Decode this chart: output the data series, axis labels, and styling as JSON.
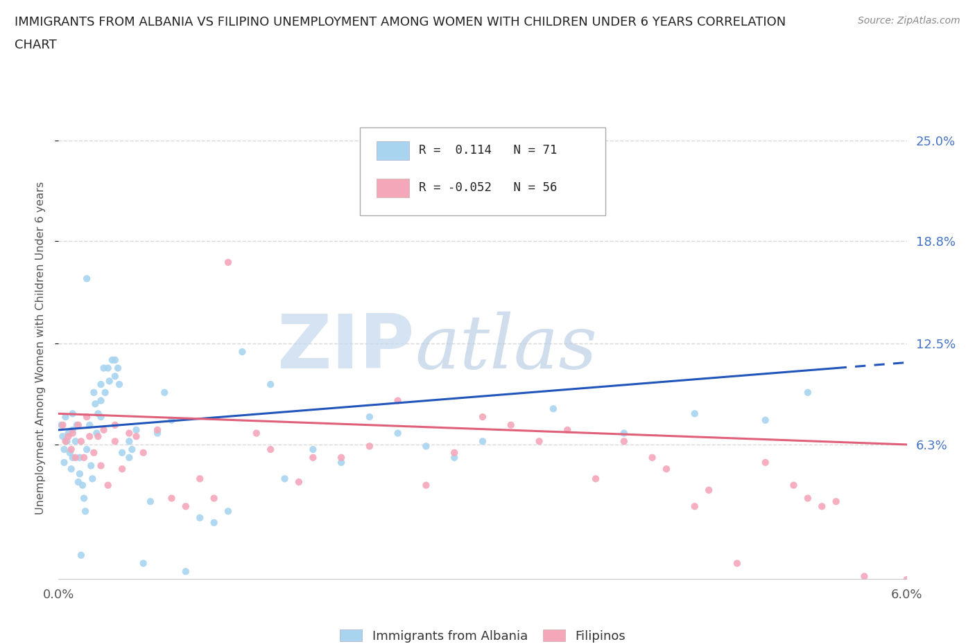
{
  "title_line1": "IMMIGRANTS FROM ALBANIA VS FILIPINO UNEMPLOYMENT AMONG WOMEN WITH CHILDREN UNDER 6 YEARS CORRELATION",
  "title_line2": "CHART",
  "source": "Source: ZipAtlas.com",
  "ylabel": "Unemployment Among Women with Children Under 6 years",
  "series1_label": "Immigrants from Albania",
  "series1_color": "#a8d4f0",
  "series2_label": "Filipinos",
  "series2_color": "#f4a7b9",
  "series1_R": "0.114",
  "series1_N": "71",
  "series2_R": "-0.052",
  "series2_N": "56",
  "trend1_color": "#2255bb",
  "trend2_color": "#e0607a",
  "background_color": "#ffffff",
  "grid_color": "#d8d8d8",
  "watermark": "ZIPatlas",
  "watermark_color_zip": "#b0c8e8",
  "watermark_color_atlas": "#90b8e0",
  "xlim": [
    0.0,
    0.06
  ],
  "ylim": [
    -0.02,
    0.265
  ],
  "ytick_vals": [
    0.063,
    0.125,
    0.188,
    0.25
  ],
  "ytick_labels": [
    "6.3%",
    "12.5%",
    "18.8%",
    "25.0%"
  ],
  "xtick_vals": [
    0.0,
    0.01,
    0.02,
    0.03,
    0.04,
    0.05,
    0.06
  ],
  "xtick_labels": [
    "0.0%",
    "",
    "",
    "",
    "",
    "",
    "6.0%"
  ],
  "trend1_x0": 0.0,
  "trend1_y0": 0.072,
  "trend1_x1": 0.055,
  "trend1_y1": 0.11,
  "trend1_dash_x0": 0.055,
  "trend1_dash_x1": 0.06,
  "trend2_x0": 0.0,
  "trend2_y0": 0.082,
  "trend2_x1": 0.06,
  "trend2_y1": 0.063,
  "albania_x": [
    0.0002,
    0.0003,
    0.0004,
    0.0004,
    0.0005,
    0.0006,
    0.0007,
    0.0008,
    0.0009,
    0.001,
    0.001,
    0.001,
    0.0012,
    0.0013,
    0.0014,
    0.0015,
    0.0015,
    0.0016,
    0.0017,
    0.0018,
    0.0019,
    0.002,
    0.002,
    0.0022,
    0.0023,
    0.0024,
    0.0025,
    0.0026,
    0.0027,
    0.0028,
    0.003,
    0.003,
    0.003,
    0.0032,
    0.0033,
    0.0035,
    0.0036,
    0.0038,
    0.004,
    0.004,
    0.0042,
    0.0043,
    0.0045,
    0.005,
    0.005,
    0.0052,
    0.0055,
    0.006,
    0.0065,
    0.007,
    0.0075,
    0.008,
    0.009,
    0.01,
    0.011,
    0.012,
    0.013,
    0.015,
    0.016,
    0.018,
    0.02,
    0.022,
    0.024,
    0.026,
    0.028,
    0.03,
    0.035,
    0.04,
    0.045,
    0.05,
    0.053
  ],
  "albania_y": [
    0.075,
    0.068,
    0.06,
    0.052,
    0.08,
    0.065,
    0.07,
    0.058,
    0.048,
    0.072,
    0.082,
    0.055,
    0.065,
    0.075,
    0.04,
    0.055,
    0.045,
    -0.005,
    0.038,
    0.03,
    0.022,
    0.165,
    0.06,
    0.075,
    0.05,
    0.042,
    0.095,
    0.088,
    0.07,
    0.082,
    0.1,
    0.09,
    0.08,
    0.11,
    0.095,
    0.11,
    0.102,
    0.115,
    0.115,
    0.105,
    0.11,
    0.1,
    0.058,
    0.065,
    0.055,
    0.06,
    0.072,
    -0.01,
    0.028,
    0.07,
    0.095,
    0.078,
    -0.015,
    0.018,
    0.015,
    0.022,
    0.12,
    0.1,
    0.042,
    0.06,
    0.052,
    0.08,
    0.07,
    0.062,
    0.055,
    0.065,
    0.085,
    0.07,
    0.082,
    0.078,
    0.095
  ],
  "filipino_x": [
    0.0003,
    0.0005,
    0.0007,
    0.0009,
    0.001,
    0.0012,
    0.0014,
    0.0016,
    0.0018,
    0.002,
    0.0022,
    0.0025,
    0.0028,
    0.003,
    0.0032,
    0.0035,
    0.004,
    0.004,
    0.0045,
    0.005,
    0.0055,
    0.006,
    0.007,
    0.008,
    0.009,
    0.01,
    0.011,
    0.012,
    0.014,
    0.015,
    0.017,
    0.018,
    0.02,
    0.022,
    0.024,
    0.026,
    0.028,
    0.03,
    0.032,
    0.034,
    0.036,
    0.038,
    0.04,
    0.042,
    0.043,
    0.045,
    0.046,
    0.048,
    0.05,
    0.052,
    0.053,
    0.054,
    0.055,
    0.057,
    0.058,
    0.06
  ],
  "filipino_y": [
    0.075,
    0.065,
    0.068,
    0.06,
    0.07,
    0.055,
    0.075,
    0.065,
    0.055,
    0.08,
    0.068,
    0.058,
    0.068,
    0.05,
    0.072,
    0.038,
    0.075,
    0.065,
    0.048,
    0.07,
    0.068,
    0.058,
    0.072,
    0.03,
    0.025,
    0.042,
    0.03,
    0.175,
    0.07,
    0.06,
    0.04,
    0.055,
    0.055,
    0.062,
    0.09,
    0.038,
    0.058,
    0.08,
    0.075,
    0.065,
    0.072,
    0.042,
    0.065,
    0.055,
    0.048,
    0.025,
    0.035,
    -0.01,
    0.052,
    0.038,
    0.03,
    0.025,
    0.028,
    -0.018,
    -0.022,
    -0.02
  ]
}
